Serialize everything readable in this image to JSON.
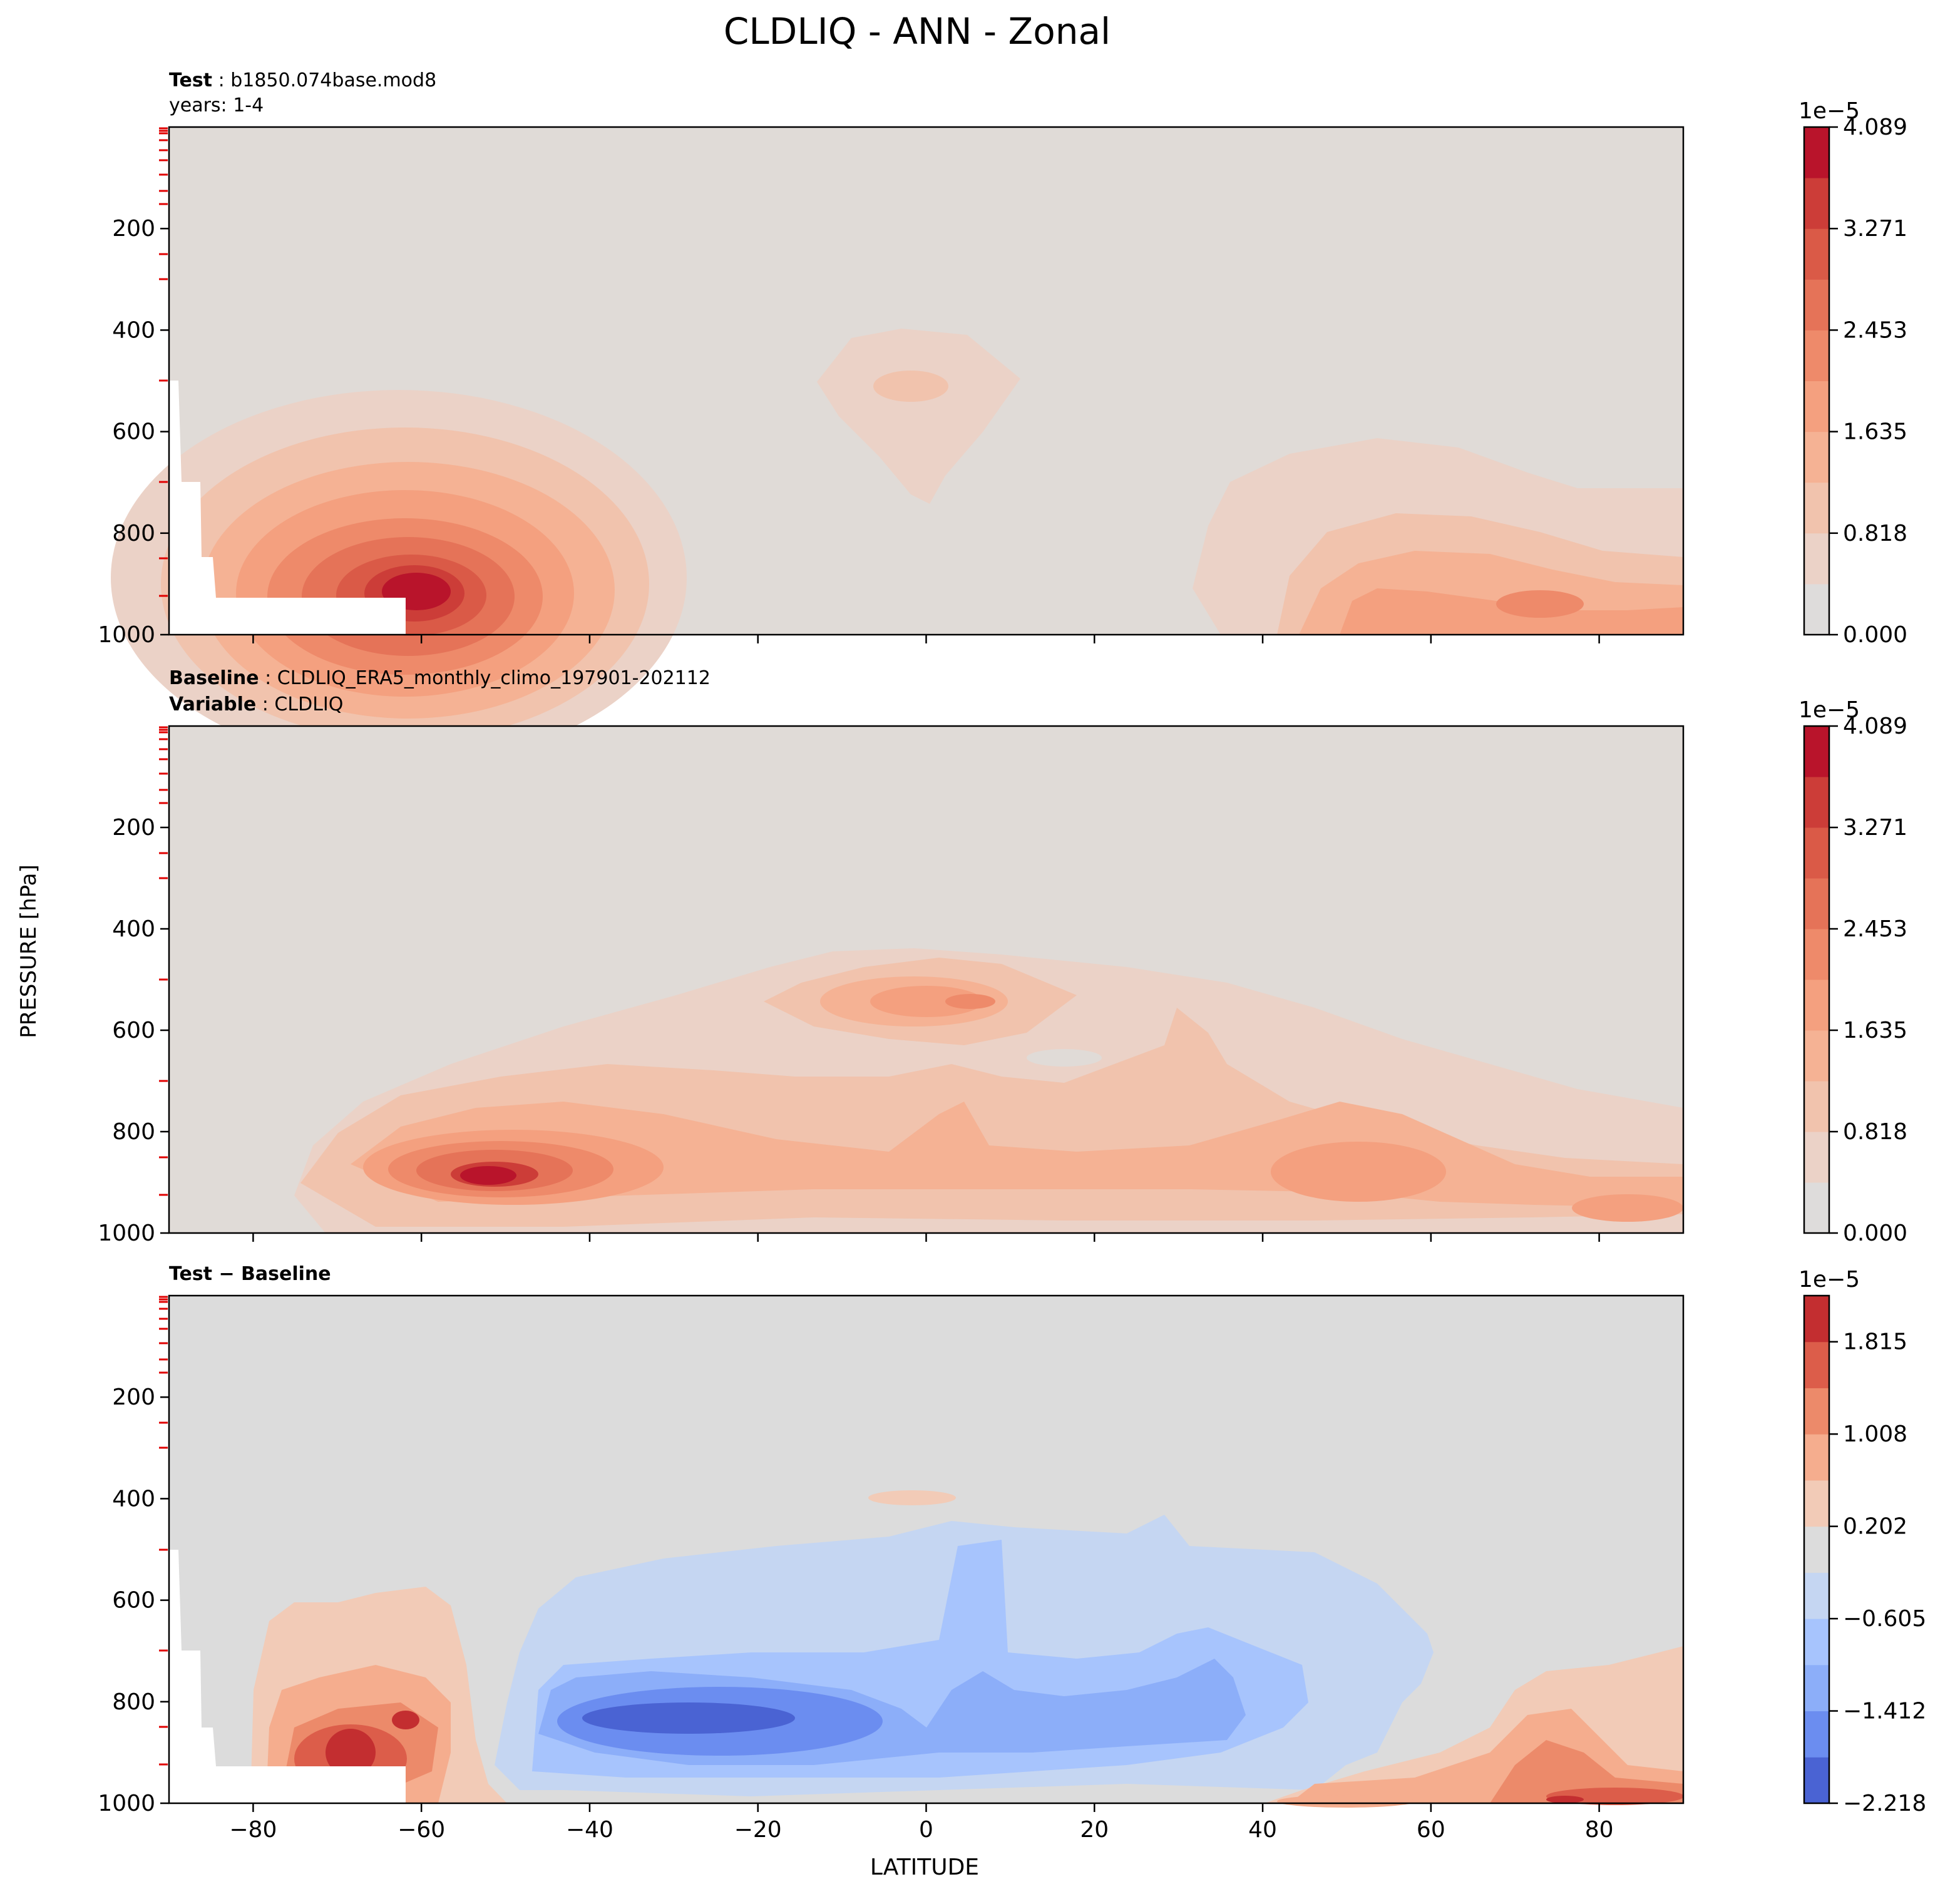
{
  "figure": {
    "title": "CLDLIQ - ANN - Zonal",
    "ylabel": "PRESSURE [hPa]",
    "xlabel": "LATITUDE"
  },
  "panels": [
    {
      "id": "test",
      "header": [
        {
          "bold": "Test",
          "text": " : b1850.074base.mod8"
        },
        {
          "bold": "",
          "text": "years: 1-4"
        }
      ],
      "colorbar": {
        "exponent": "1e−5",
        "ticks": [
          "0.000",
          "0.818",
          "1.635",
          "2.453",
          "3.271",
          "4.089"
        ],
        "colors": [
          "#dedcdb",
          "#ebd2c7",
          "#f1c3ad",
          "#f5b294",
          "#f4a07f",
          "#ee8a6a",
          "#e57358",
          "#da5a47",
          "#cc3d38",
          "#b9142b"
        ]
      }
    },
    {
      "id": "baseline",
      "header": [
        {
          "bold": "Baseline",
          "text": " : CLDLIQ_ERA5_monthly_climo_197901-202112"
        },
        {
          "bold": "Variable",
          "text": " : CLDLIQ"
        }
      ],
      "colorbar": {
        "exponent": "1e−5",
        "ticks": [
          "0.000",
          "0.818",
          "1.635",
          "2.453",
          "3.271",
          "4.089"
        ],
        "colors": [
          "#dedcdb",
          "#ebd2c7",
          "#f1c3ad",
          "#f5b294",
          "#f4a07f",
          "#ee8a6a",
          "#e57358",
          "#da5a47",
          "#cc3d38",
          "#b9142b"
        ]
      }
    },
    {
      "id": "diff",
      "header": [
        {
          "bold": "Test − Baseline",
          "text": ""
        }
      ],
      "colorbar": {
        "exponent": "1e−5",
        "ticks": [
          "−2.218",
          "−1.412",
          "−0.605",
          "0.202",
          "1.008",
          "1.815"
        ],
        "colors": [
          "#4a63d3",
          "#6b8df0",
          "#8caef9",
          "#a7c4fd",
          "#c5d6f2",
          "#dcdcdc",
          "#f2cbb7",
          "#f5ad8e",
          "#ec8a6a",
          "#dc5d4a",
          "#c32e30"
        ]
      }
    }
  ],
  "chart_data": {
    "type": "heatmap",
    "x": {
      "label": "LATITUDE",
      "range": [
        -90,
        90
      ],
      "ticks": [
        -80,
        -60,
        -40,
        -20,
        0,
        20,
        40,
        60,
        80
      ]
    },
    "y": {
      "label": "PRESSURE [hPa]",
      "range": [
        1000,
        0
      ],
      "ticks": [
        200,
        400,
        600,
        800,
        1000
      ],
      "inverted": true
    },
    "fields": [
      {
        "name": "Test",
        "unit_exponent": -5,
        "levels": [
          0,
          0.409,
          0.818,
          1.227,
          1.635,
          2.044,
          2.453,
          2.862,
          3.271,
          3.68,
          4.089
        ],
        "features": [
          {
            "lat": -54,
            "p": 890,
            "peak": 4.2,
            "extent_lat": [
              -80,
              -30
            ],
            "extent_p": [
              610,
              1000
            ]
          },
          {
            "lat": 0,
            "p": 500,
            "peak": 0.9,
            "extent_lat": [
              -13,
              11
            ],
            "extent_p": [
              400,
              740
            ]
          },
          {
            "lat": 75,
            "p": 920,
            "peak": 3.0,
            "extent_lat": [
              32,
              90
            ],
            "extent_p": [
              600,
              1000
            ]
          }
        ]
      },
      {
        "name": "Baseline",
        "unit_exponent": -5,
        "levels": [
          0,
          0.409,
          0.818,
          1.227,
          1.635,
          2.044,
          2.453,
          2.862,
          3.271,
          3.68,
          4.089
        ],
        "features": [
          {
            "lat": -52,
            "p": 900,
            "peak": 4.3,
            "extent_lat": [
              -75,
              90
            ],
            "extent_p": [
              460,
              1000
            ]
          },
          {
            "lat": 0,
            "p": 545,
            "peak": 2.3,
            "extent_lat": [
              -20,
              17
            ],
            "extent_p": [
              470,
              620
            ]
          },
          {
            "lat": 52,
            "p": 880,
            "peak": 2.2,
            "extent_lat": [
              25,
              65
            ],
            "extent_p": [
              780,
              960
            ]
          }
        ]
      },
      {
        "name": "Test − Baseline",
        "unit_exponent": -5,
        "levels": [
          -2.218,
          -1.815,
          -1.412,
          -1.008,
          -0.605,
          -0.202,
          0.202,
          0.605,
          1.008,
          1.412,
          1.815,
          2.218
        ],
        "features": [
          {
            "lat": -68,
            "p": 880,
            "peak": 1.9,
            "extent_lat": [
              -78,
              -55
            ],
            "extent_p": [
              580,
              1000
            ]
          },
          {
            "lat": -25,
            "p": 850,
            "peak": -2.0,
            "extent_lat": [
              -52,
              60
            ],
            "extent_p": [
              430,
              980
            ]
          },
          {
            "lat": 80,
            "p": 980,
            "peak": 1.9,
            "extent_lat": [
              42,
              90
            ],
            "extent_p": [
              730,
              1000
            ]
          },
          {
            "lat": -6,
            "p": 390,
            "peak": 0.4,
            "extent_lat": [
              -7,
              4
            ],
            "extent_p": [
              375,
              405
            ]
          }
        ]
      }
    ]
  }
}
